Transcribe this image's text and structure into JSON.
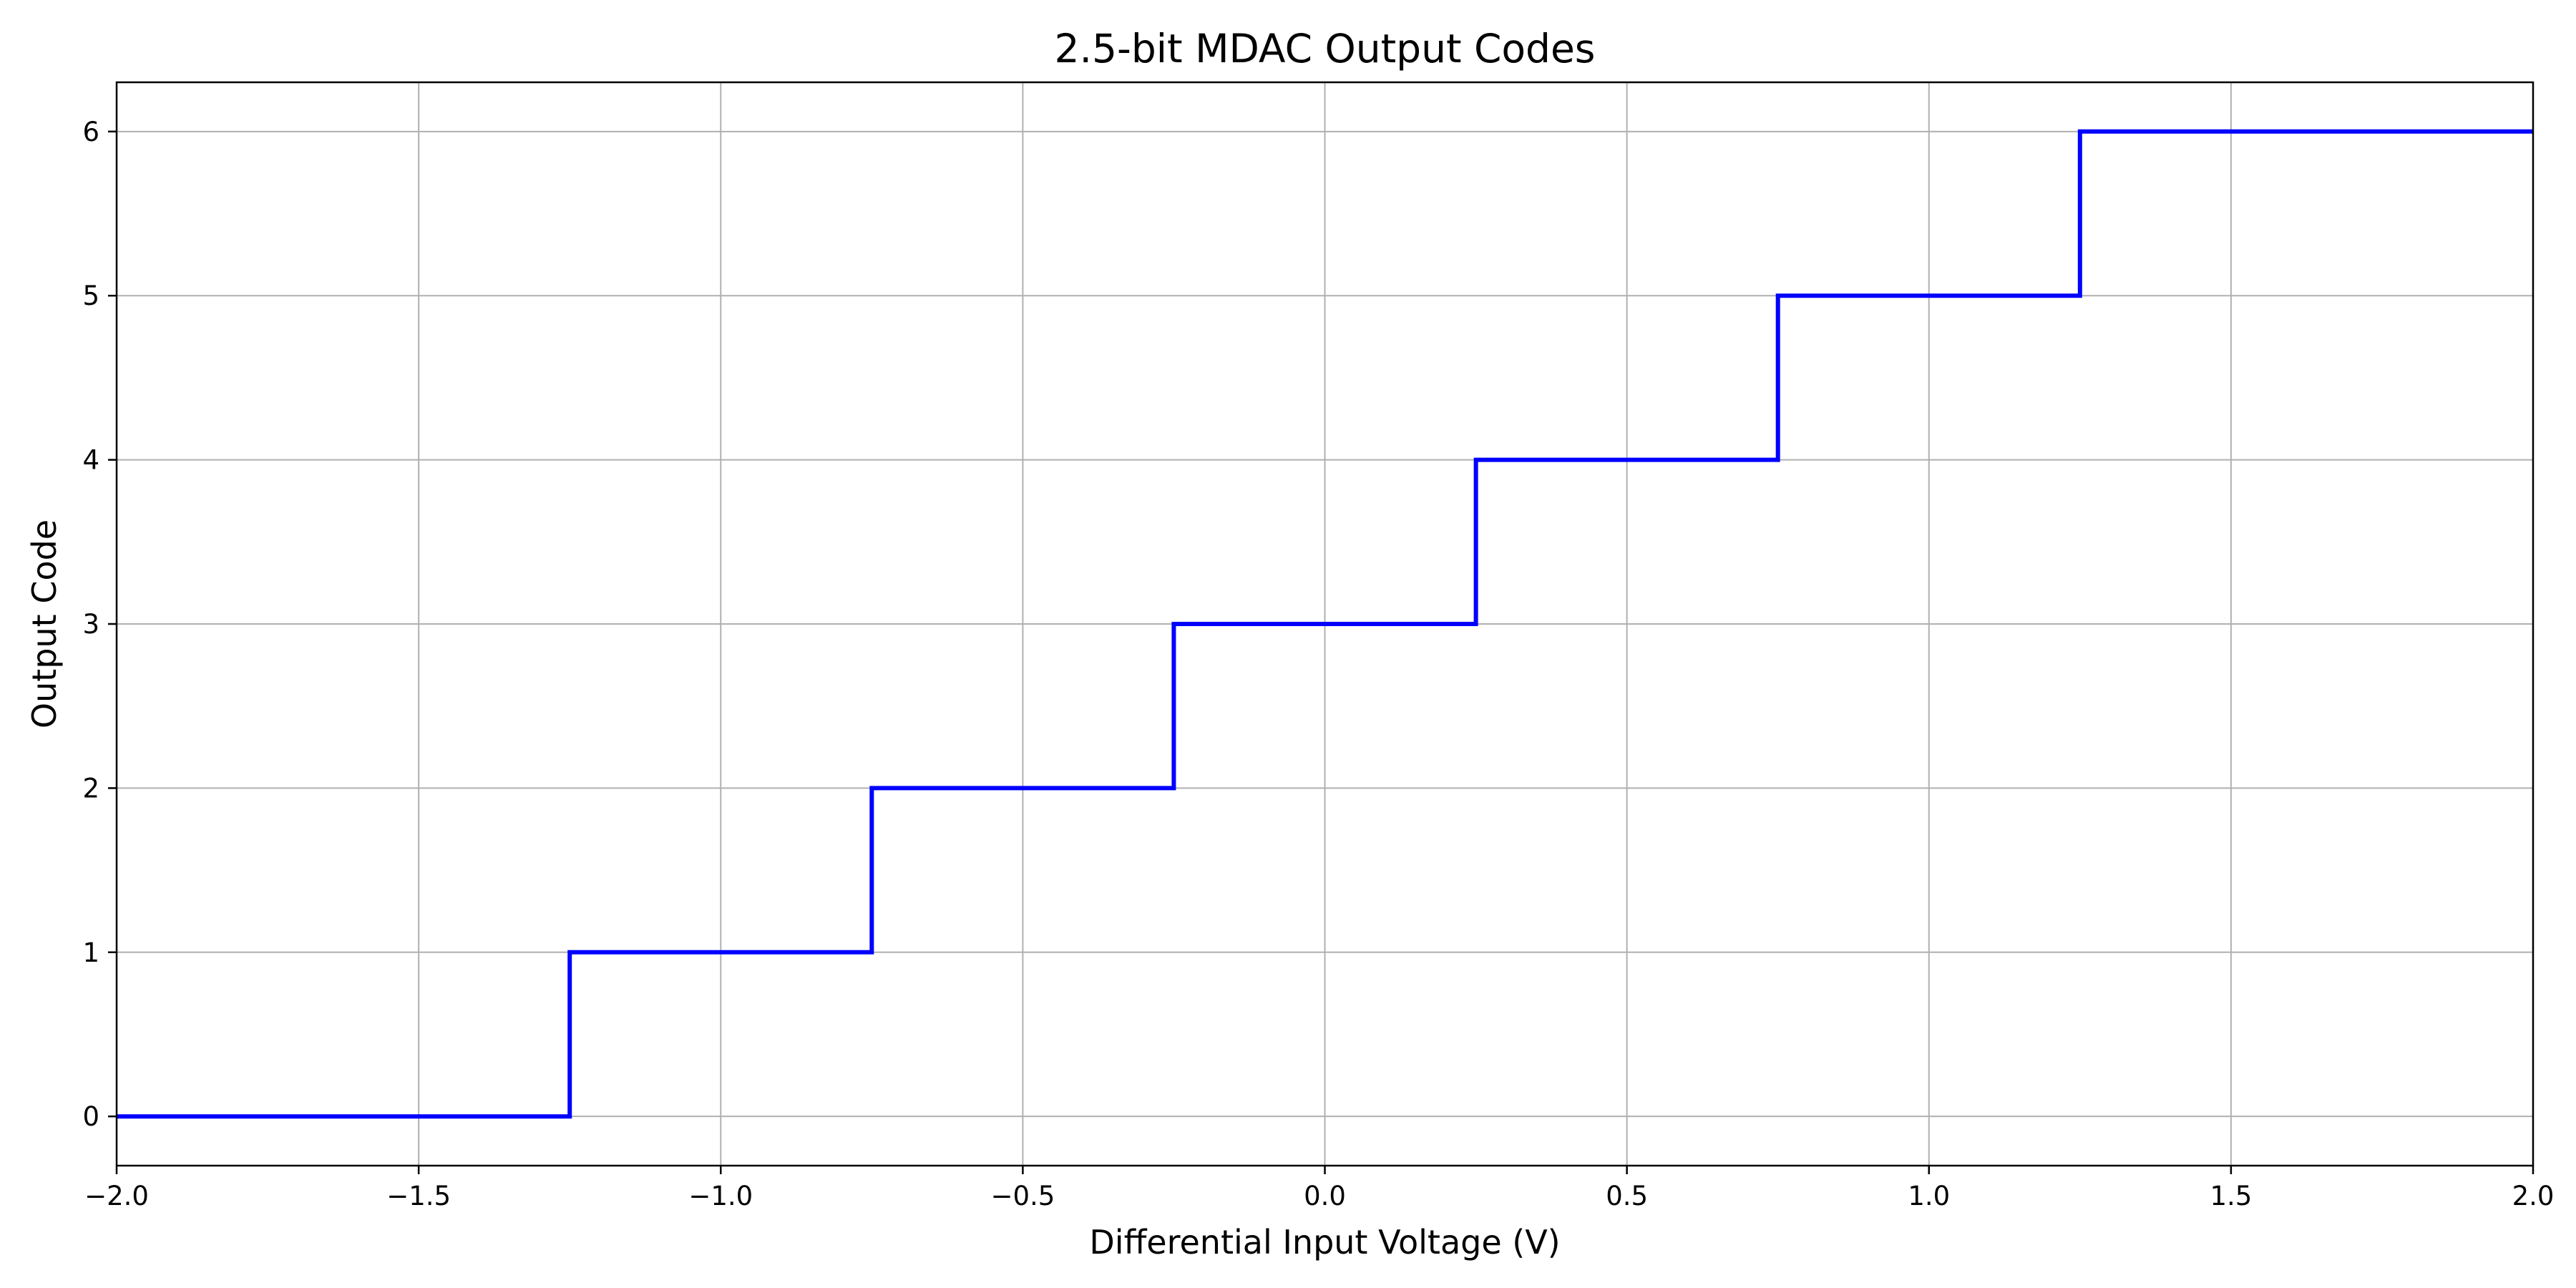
{
  "chart_data": {
    "type": "line",
    "step": "post",
    "title": "2.5-bit MDAC Output Codes",
    "xlabel": "Differential Input Voltage (V)",
    "ylabel": "Output Code",
    "xlim": [
      -2.0,
      2.0
    ],
    "ylim": [
      -0.3,
      6.3
    ],
    "xticks": [
      -2.0,
      -1.5,
      -1.0,
      -0.5,
      0.0,
      0.5,
      1.0,
      1.5,
      2.0
    ],
    "xtick_labels": [
      "−2.0",
      "−1.5",
      "−1.0",
      "−0.5",
      "0.0",
      "0.5",
      "1.0",
      "1.5",
      "2.0"
    ],
    "yticks": [
      0,
      1,
      2,
      3,
      4,
      5,
      6
    ],
    "ytick_labels": [
      "0",
      "1",
      "2",
      "3",
      "4",
      "5",
      "6"
    ],
    "grid": true,
    "series": [
      {
        "color": "#0000ff",
        "x": [
          -2.0,
          -1.25,
          -0.75,
          -0.25,
          0.25,
          0.75,
          1.25,
          2.0
        ],
        "y": [
          0,
          1,
          2,
          3,
          4,
          5,
          6,
          6
        ]
      }
    ]
  }
}
